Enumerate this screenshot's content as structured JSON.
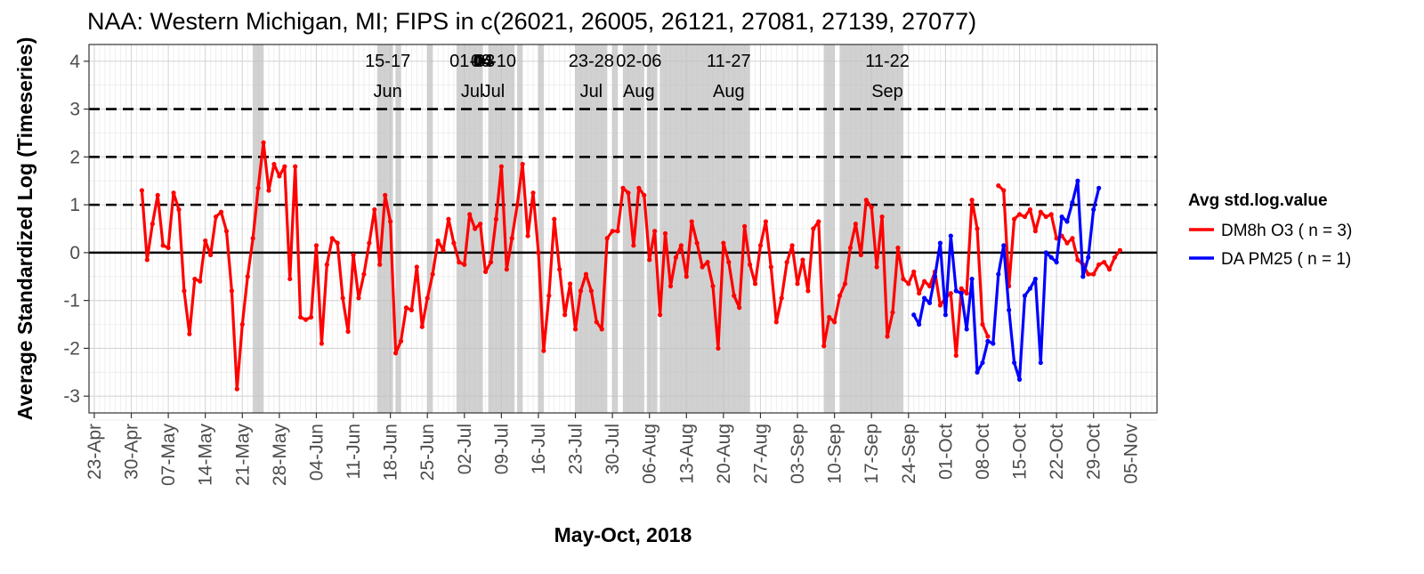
{
  "chart_data": {
    "type": "line",
    "title": "NAA: Western Michigan, MI; FIPS in c(26021, 26005, 26121, 27081, 27139, 27077)",
    "xlabel": "May-Oct, 2018",
    "ylabel": "Average Standardized Log (Timeseries)",
    "x_start": "2018-04-23",
    "xlim_days": [
      -1,
      201
    ],
    "ylim": [
      -3.35,
      4.35
    ],
    "y_ticks": [
      -3,
      -2,
      -1,
      0,
      1,
      2,
      3,
      4
    ],
    "x_ticks": [
      {
        "day": 0,
        "label": "23-Apr"
      },
      {
        "day": 7,
        "label": "30-Apr"
      },
      {
        "day": 14,
        "label": "07-May"
      },
      {
        "day": 21,
        "label": "14-May"
      },
      {
        "day": 28,
        "label": "21-May"
      },
      {
        "day": 35,
        "label": "28-May"
      },
      {
        "day": 42,
        "label": "04-Jun"
      },
      {
        "day": 49,
        "label": "11-Jun"
      },
      {
        "day": 56,
        "label": "18-Jun"
      },
      {
        "day": 63,
        "label": "25-Jun"
      },
      {
        "day": 70,
        "label": "02-Jul"
      },
      {
        "day": 77,
        "label": "09-Jul"
      },
      {
        "day": 84,
        "label": "16-Jul"
      },
      {
        "day": 91,
        "label": "23-Jul"
      },
      {
        "day": 98,
        "label": "30-Jul"
      },
      {
        "day": 105,
        "label": "06-Aug"
      },
      {
        "day": 112,
        "label": "13-Aug"
      },
      {
        "day": 119,
        "label": "20-Aug"
      },
      {
        "day": 126,
        "label": "27-Aug"
      },
      {
        "day": 133,
        "label": "03-Sep"
      },
      {
        "day": 140,
        "label": "10-Sep"
      },
      {
        "day": 147,
        "label": "17-Sep"
      },
      {
        "day": 154,
        "label": "24-Sep"
      },
      {
        "day": 161,
        "label": "01-Oct"
      },
      {
        "day": 168,
        "label": "08-Oct"
      },
      {
        "day": 175,
        "label": "15-Oct"
      },
      {
        "day": 182,
        "label": "22-Oct"
      },
      {
        "day": 189,
        "label": "29-Oct"
      },
      {
        "day": 196,
        "label": "05-Nov"
      }
    ],
    "hlines_dashed": [
      1,
      2,
      3
    ],
    "hline_solid": 0,
    "shaded_periods": [
      [
        30,
        32
      ],
      [
        53.5,
        56.5
      ],
      [
        57,
        58
      ],
      [
        63,
        64
      ],
      [
        68.5,
        73.5
      ],
      [
        74.5,
        79.5
      ],
      [
        80,
        81
      ],
      [
        84,
        85
      ],
      [
        91,
        97
      ],
      [
        98,
        99
      ],
      [
        100,
        104
      ],
      [
        104.5,
        106.5
      ],
      [
        107,
        124
      ],
      [
        138,
        140
      ],
      [
        141,
        153
      ]
    ],
    "event_labels": [
      {
        "day": 55.5,
        "line1": "15-17",
        "line2": "Jun"
      },
      {
        "day": 71.5,
        "line1": "01-03",
        "line2": "Jul"
      },
      {
        "day": 75.5,
        "line1": "06-10",
        "line2": "Jul"
      },
      {
        "day": 94,
        "line1": "23-28",
        "line2": "Jul"
      },
      {
        "day": 103,
        "line1": "02-06",
        "line2": "Aug"
      },
      {
        "day": 120,
        "line1": "11-27",
        "line2": "Aug"
      },
      {
        "day": 150,
        "line1": "11-22",
        "line2": "Sep"
      }
    ],
    "overlap_label": {
      "day": 73.5,
      "text": "04"
    },
    "series": [
      {
        "name": "DM8h O3",
        "legend_label": "DM8h O3 ( n = 3)",
        "color": "#ff0000",
        "start_day": 9,
        "values": [
          1.3,
          -0.15,
          0.6,
          1.2,
          0.15,
          0.1,
          1.25,
          0.9,
          -0.8,
          -1.7,
          -0.55,
          -0.6,
          0.25,
          -0.05,
          0.75,
          0.85,
          0.45,
          -0.8,
          -2.85,
          -1.5,
          -0.5,
          0.3,
          1.35,
          2.3,
          1.3,
          1.85,
          1.6,
          1.8,
          -0.55,
          1.8,
          -1.35,
          -1.4,
          -1.35,
          0.15,
          -1.9,
          -0.25,
          0.3,
          0.2,
          -0.95,
          -1.65,
          -0.05,
          -0.95,
          -0.45,
          0.2,
          0.9,
          -0.25,
          1.2,
          0.65,
          -2.1,
          -1.85,
          -1.15,
          -1.2,
          -0.3,
          -1.55,
          -0.95,
          -0.45,
          0.25,
          0.05,
          0.7,
          0.2,
          -0.2,
          -0.25,
          0.8,
          0.5,
          0.6,
          -0.4,
          -0.2,
          0.7,
          1.8,
          -0.35,
          0.3,
          1.0,
          1.85,
          0.35,
          1.25,
          0.0,
          -2.05,
          -0.9,
          0.7,
          -0.35,
          -1.3,
          -0.65,
          -1.6,
          -0.8,
          -0.45,
          -0.8,
          -1.45,
          -1.6,
          0.3,
          0.45,
          0.45,
          1.35,
          1.25,
          0.15,
          1.35,
          1.2,
          -0.15,
          0.45,
          -1.3,
          0.4,
          -0.7,
          -0.1,
          0.15,
          -0.5,
          0.65,
          0.2,
          -0.3,
          -0.2,
          -0.7,
          -2.0,
          0.2,
          -0.2,
          -0.9,
          -1.15,
          0.55,
          -0.25,
          -0.65,
          0.15,
          0.65,
          -0.3,
          -1.45,
          -0.95,
          -0.2,
          0.15,
          -0.65,
          -0.15,
          -0.8,
          0.5,
          0.65,
          -1.95,
          -1.35,
          -1.45,
          -0.9,
          -0.65,
          0.1,
          0.6,
          -0.05,
          1.1,
          0.95,
          -0.3,
          0.75,
          -1.75,
          -1.25,
          0.1,
          -0.55,
          -0.65,
          -0.4,
          -0.85,
          -0.6,
          -0.7,
          -0.4,
          -1.1,
          -0.95,
          -0.85,
          -2.15,
          -0.75,
          -0.85,
          1.1,
          0.5,
          -1.5,
          -1.75,
          null,
          1.4,
          1.3,
          -0.7,
          0.7,
          0.8,
          0.75,
          0.9,
          0.45,
          0.85,
          0.75,
          0.8,
          0.3,
          0.35,
          0.2,
          0.3,
          -0.15,
          -0.25,
          -0.45,
          -0.45,
          -0.25,
          -0.2,
          -0.35,
          -0.1,
          0.05
        ]
      },
      {
        "name": "DA PM25",
        "legend_label": "DA PM25 ( n = 1)",
        "color": "#0000ff",
        "start_day": 155,
        "values": [
          -1.3,
          -1.5,
          -0.95,
          -1.05,
          -0.5,
          0.2,
          -1.3,
          0.35,
          -0.8,
          -0.85,
          -1.6,
          -0.55,
          -2.5,
          -2.3,
          -1.85,
          -1.9,
          -0.45,
          0.15,
          -1.2,
          -2.3,
          -2.65,
          -0.9,
          -0.75,
          -0.55,
          -2.3,
          0.0,
          -0.1,
          -0.2,
          0.75,
          0.65,
          1.05,
          1.5,
          -0.5,
          -0.1,
          0.9,
          1.35
        ]
      }
    ],
    "legend": {
      "title": "Avg std.log.value",
      "position": "right"
    }
  }
}
